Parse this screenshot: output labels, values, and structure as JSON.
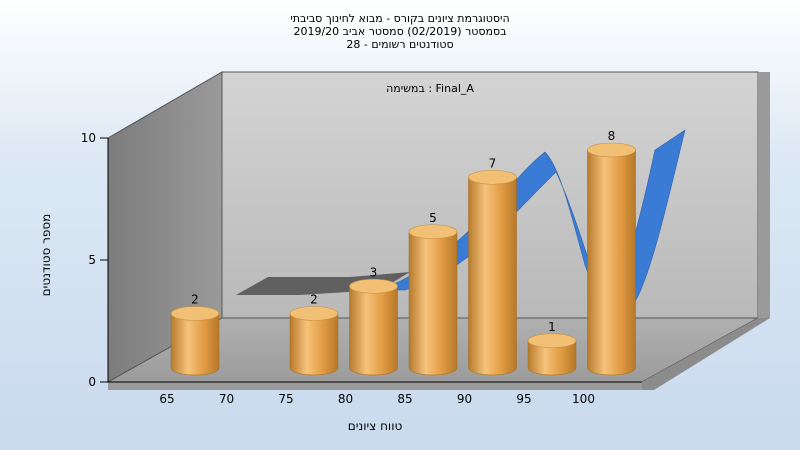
{
  "title_lines": [
    "היסטוגרמת ציונים בקורס - מבוא לחינוך סביבתי",
    "בסמסטר  (02/2019)  סמסטר אביב 2019/20",
    "סטודנטים רשומים - 28"
  ],
  "colors": {
    "bar": "#e3a24a",
    "bar_top": "#f2c074",
    "curve": "#3a7bd5",
    "back_wall": "#c7c7c7",
    "side_wall": "#8a8a8a",
    "floor": "#a9a9a9"
  },
  "chart_data": {
    "type": "bar",
    "annotation": "במשימה : Final_A",
    "xlabel": "טווח ציונים",
    "ylabel": "מספר סטודנטים",
    "x_ticks": [
      "65",
      "70",
      "75",
      "80",
      "85",
      "90",
      "95",
      "100"
    ],
    "y_ticks": [
      "0",
      "5",
      "10"
    ],
    "ylim": [
      0,
      10
    ],
    "categories": [
      "65",
      "75",
      "80",
      "85",
      "90",
      "95",
      "100"
    ],
    "values": [
      2,
      2,
      3,
      5,
      7,
      1,
      8
    ],
    "labels": [
      "2",
      "2",
      "3",
      "5",
      "7",
      "1",
      "8"
    ],
    "grid": false,
    "style": "3d"
  }
}
